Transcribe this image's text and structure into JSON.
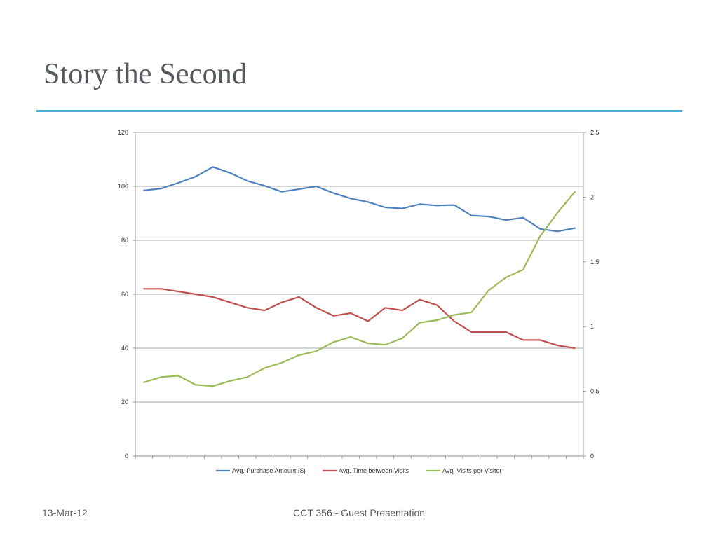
{
  "slide": {
    "title": "Story the Second",
    "footer_date": "13-Mar-12",
    "footer_center": "CCT 356 - Guest Presentation",
    "accent_color": "#4bb3d9"
  },
  "chart_data": {
    "type": "line",
    "title": "",
    "xlabel": "",
    "ylabel": "",
    "x": [
      1,
      2,
      3,
      4,
      5,
      6,
      7,
      8,
      9,
      10,
      11,
      12,
      13,
      14,
      15,
      16,
      17,
      18,
      19,
      20,
      21,
      22,
      23,
      24,
      25,
      26
    ],
    "ylim": [
      0,
      120
    ],
    "y_ticks": [
      0,
      20,
      40,
      60,
      80,
      100,
      120
    ],
    "y2lim": [
      0,
      2.5
    ],
    "y2_ticks": [
      "0",
      "0.5",
      "1",
      "1.5",
      "2",
      "2.5"
    ],
    "grid": true,
    "legend_position": "bottom",
    "series": [
      {
        "name": "Avg. Purchase Amount ($)",
        "axis": "left",
        "color": "#4f81bd",
        "values": [
          98.5,
          99.2,
          101.3,
          103.6,
          107.2,
          105,
          102,
          100.2,
          98,
          99,
          100,
          97.5,
          95.5,
          94.2,
          92.2,
          91.8,
          93.4,
          92.9,
          93.1,
          89.2,
          88.8,
          87.5,
          88.4,
          84.2,
          83.3,
          84.5
        ]
      },
      {
        "name": "Avg. Time between Visits",
        "axis": "left",
        "color": "#c0504d",
        "values": [
          62,
          62,
          61,
          60,
          59,
          57,
          55,
          54,
          57,
          59,
          55,
          52,
          53,
          50,
          55,
          54,
          58,
          56,
          50,
          46,
          46,
          46,
          43,
          43,
          41,
          40
        ]
      },
      {
        "name": "Avg. Visits per Visitor",
        "axis": "right",
        "color": "#9bbb59",
        "values": [
          0.57,
          0.61,
          0.62,
          0.55,
          0.54,
          0.58,
          0.61,
          0.68,
          0.72,
          0.78,
          0.81,
          0.88,
          0.92,
          0.87,
          0.86,
          0.91,
          1.03,
          1.05,
          1.09,
          1.11,
          1.28,
          1.38,
          1.44,
          1.7,
          1.88,
          2.04
        ]
      }
    ]
  }
}
